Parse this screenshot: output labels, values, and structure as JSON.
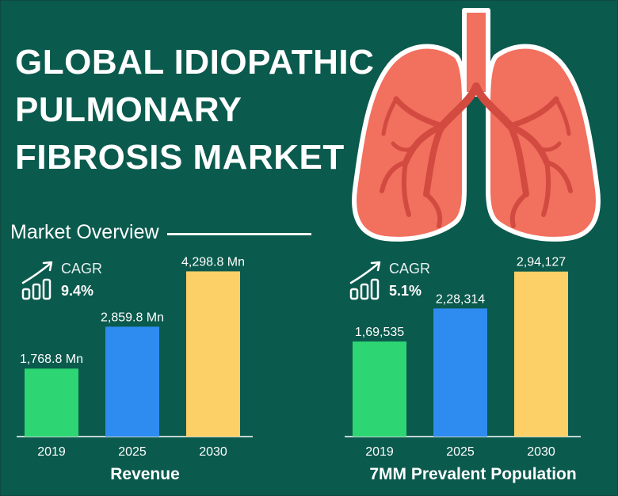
{
  "title": {
    "line1": "GLOBAL IDIOPATHIC",
    "line2": "PULMONARY",
    "line3": "FIBROSIS MARKET"
  },
  "overview_label": "Market Overview",
  "colors": {
    "background": "#0a5a4d",
    "bar_2019": "#2ed573",
    "bar_2025": "#2e8cf0",
    "bar_2030": "#fcd066",
    "lung_fill": "#f2705e",
    "lung_outline": "#ffffff",
    "lung_vessel": "#d24a40"
  },
  "icons": [
    "trend-arrow-bars-icon",
    "lungs-illustration"
  ],
  "chart_data": [
    {
      "type": "bar",
      "title": "Revenue",
      "categories": [
        "2019",
        "2025",
        "2030"
      ],
      "values": [
        1768.8,
        2859.8,
        4298.8
      ],
      "value_labels": [
        "1,768.8 Mn",
        "2,859.8 Mn",
        "4,298.8 Mn"
      ],
      "ylim": [
        0,
        4700
      ],
      "cagr_label": "CAGR",
      "cagr_value": "9.4%",
      "grid": false
    },
    {
      "type": "bar",
      "title": "7MM Prevalent Population",
      "categories": [
        "2019",
        "2025",
        "2030"
      ],
      "values": [
        169535,
        228314,
        294127
      ],
      "value_labels": [
        "1,69,535",
        "2,28,314",
        "2,94,127"
      ],
      "ylim": [
        0,
        322000
      ],
      "cagr_label": "CAGR",
      "cagr_value": "5.1%",
      "grid": false
    }
  ]
}
